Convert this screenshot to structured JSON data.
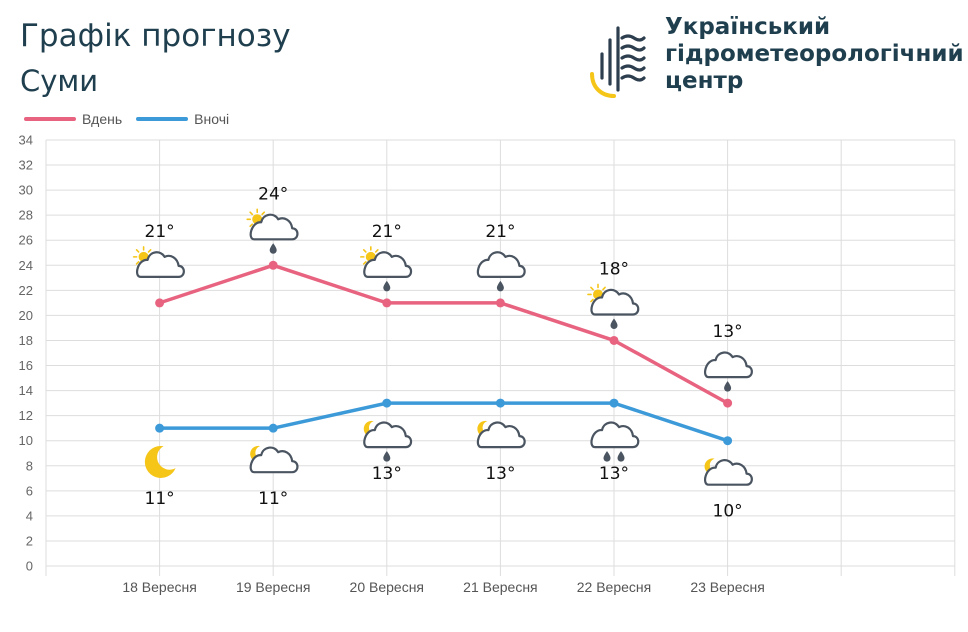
{
  "header": {
    "title": "Графік прогнозу",
    "city": "Суми",
    "org_lines": [
      "Український",
      "гідрометеорологічний",
      "центр"
    ]
  },
  "colors": {
    "day": "#e8637f",
    "night": "#3d9ad9",
    "grid": "#dddddd",
    "icon": "#4a5561",
    "sun": "#f5c518",
    "logo_dark": "#2d3e4e"
  },
  "chart_data": {
    "type": "line",
    "title": "",
    "xlabel": "",
    "ylabel": "",
    "categories": [
      "18 Вересня",
      "19 Вересня",
      "20 Вересня",
      "21 Вересня",
      "22 Вересня",
      "23 Вересня"
    ],
    "ylim": [
      0,
      34
    ],
    "yticks": [
      0,
      2,
      4,
      6,
      8,
      10,
      12,
      14,
      16,
      18,
      20,
      22,
      24,
      26,
      28,
      30,
      32,
      34
    ],
    "grid": true,
    "legend_position": "top-left",
    "series": [
      {
        "name": "Вдень",
        "values": [
          21,
          24,
          21,
          21,
          18,
          13
        ],
        "labels": [
          "21°",
          "24°",
          "21°",
          "21°",
          "18°",
          "13°"
        ],
        "icons": [
          "sun-cloud-icon",
          "sun-cloud-rain-icon",
          "sun-cloud-rain-icon",
          "cloud-rain-icon",
          "sun-cloud-rain-icon",
          "cloud-rain-icon"
        ]
      },
      {
        "name": "Вночі",
        "values": [
          11,
          11,
          13,
          13,
          13,
          10
        ],
        "labels": [
          "11°",
          "11°",
          "13°",
          "13°",
          "13°",
          "10°"
        ],
        "icons": [
          "moon-icon",
          "moon-cloud-icon",
          "moon-cloud-rain-icon",
          "moon-cloud-icon",
          "cloud-heavy-rain-icon",
          "moon-cloud-icon"
        ]
      }
    ]
  }
}
